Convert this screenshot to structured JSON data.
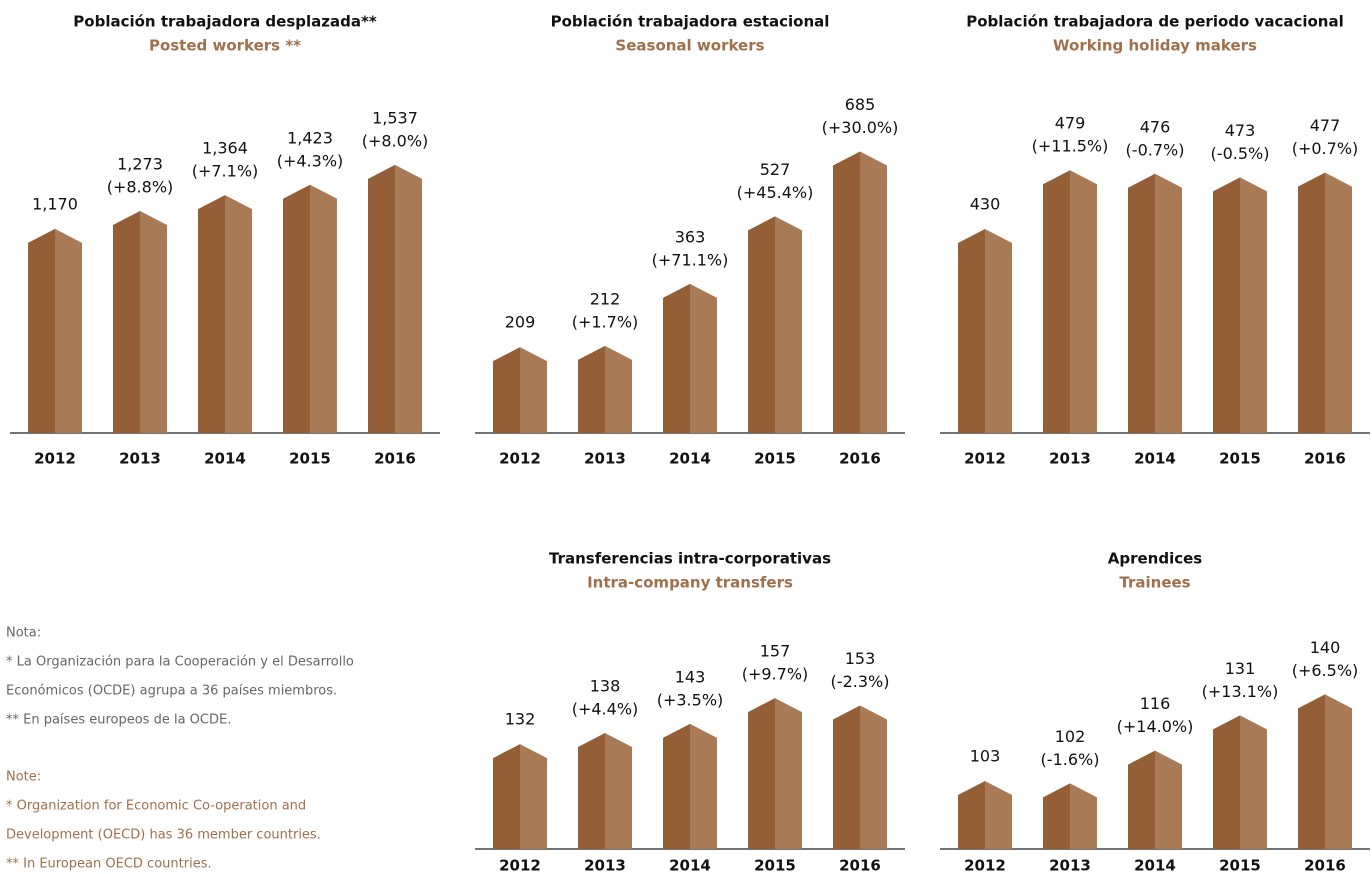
{
  "chart_data": [
    {
      "type": "bar",
      "title": "Población trabajadora desplazada**",
      "subtitle": "Posted workers **",
      "categories": [
        "2012",
        "2013",
        "2014",
        "2015",
        "2016"
      ],
      "values": [
        1170,
        1273,
        1364,
        1423,
        1537
      ],
      "value_labels": [
        "1,170",
        "1,273",
        "1,364",
        "1,423",
        "1,537"
      ],
      "changes": [
        null,
        "(+8.8%)",
        "(+7.1%)",
        "(+4.3%)",
        "(+8.0%)"
      ],
      "ylim": [
        0,
        1720
      ],
      "color": "#945f36"
    },
    {
      "type": "bar",
      "title": "Población trabajadora estacional",
      "subtitle": "Seasonal workers",
      "categories": [
        "2012",
        "2013",
        "2014",
        "2015",
        "2016"
      ],
      "values": [
        209,
        212,
        363,
        527,
        685
      ],
      "changes": [
        null,
        "(+1.7%)",
        "(+71.1%)",
        "(+45.4%)",
        "(+30.0%)"
      ],
      "ylim": [
        0,
        730
      ],
      "color": "#945f36"
    },
    {
      "type": "bar",
      "title": "Población trabajadora de periodo vacacional",
      "subtitle": "Working holiday makers",
      "categories": [
        "2012",
        "2013",
        "2014",
        "2015",
        "2016"
      ],
      "values": [
        430,
        479,
        476,
        473,
        477
      ],
      "changes": [
        null,
        "(+11.5%)",
        "(-0.7%)",
        "(-0.5%)",
        "(+0.7%)"
      ],
      "ylim": [
        260,
        510
      ],
      "color": "#945f36"
    },
    {
      "type": "bar",
      "title": "Transferencias intra-corporativas",
      "subtitle": "Intra-company transfers",
      "categories": [
        "2012",
        "2013",
        "2014",
        "2015",
        "2016"
      ],
      "values": [
        132,
        138,
        143,
        157,
        153
      ],
      "changes": [
        null,
        "(+4.4%)",
        "(+3.5%)",
        "(+9.7%)",
        "(-2.3%)"
      ],
      "ylim": [
        75,
        238
      ],
      "color": "#945f36"
    },
    {
      "type": "bar",
      "title": "Aprendices",
      "subtitle": "Trainees",
      "categories": [
        "2012",
        "2013",
        "2014",
        "2015",
        "2016"
      ],
      "values": [
        103,
        102,
        116,
        131,
        140
      ],
      "changes": [
        null,
        "(-1.6%)",
        "(+14.0%)",
        "(+13.1%)",
        "(+6.5%)"
      ],
      "ylim": [
        74,
        202
      ],
      "color": "#945f36"
    }
  ],
  "notes": {
    "es": {
      "heading": "Nota:",
      "lines": [
        "* La Organización para la Cooperación y el Desarrollo",
        "Económicos (OCDE) agrupa a 36 países miembros.",
        "** En países europeos de la OCDE."
      ]
    },
    "en": {
      "heading": "Note:",
      "lines": [
        "* Organization for Economic Co-operation and",
        "Development (OECD) has 36 member countries.",
        "** In European OECD countries."
      ]
    }
  }
}
